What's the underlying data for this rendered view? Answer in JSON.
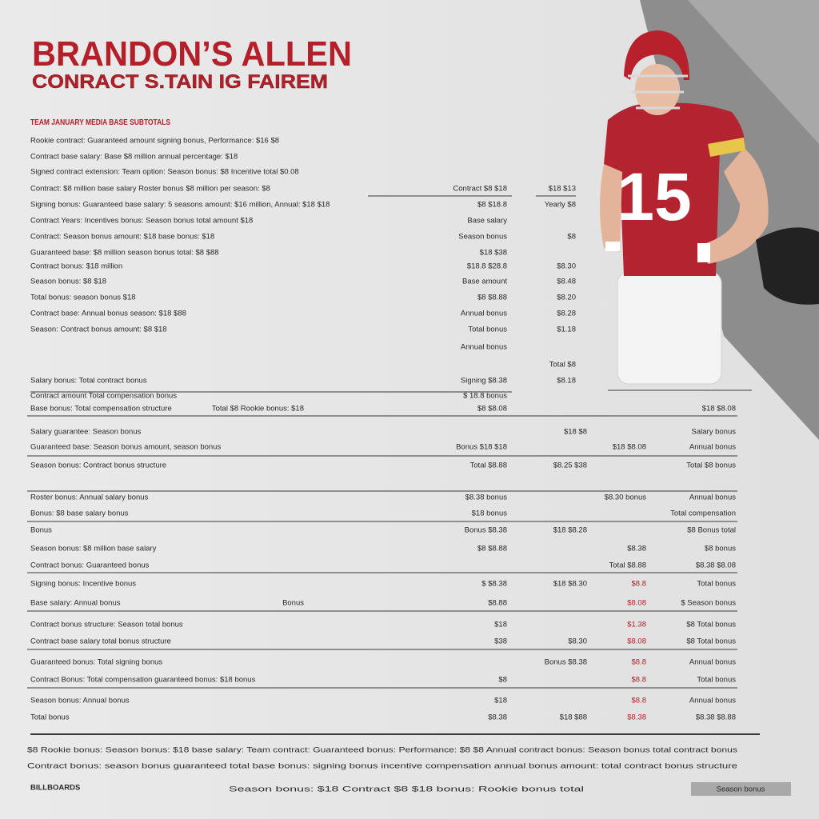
{
  "header": {
    "title": "BRANDON’S ALLEN",
    "subtitle": "CONRACT S.TAIN IG FAIREM",
    "section_heading": "TEAM JANUARY MEDIA BASE SUBTOTALS"
  },
  "player": {
    "jersey_number": "15"
  },
  "upper_rows": [
    {
      "label": "Rookie contract: Guaranteed amount signing bonus, Performance: $16 $8"
    },
    {
      "label": "Contract base salary: Base $8 million annual percentage: $18"
    },
    {
      "label": "Signed contract extension: Team option: Season bonus: $8 Incentive total $0.08"
    },
    {
      "label": "Contract: $8 million base salary Roster bonus $8 million per season: $8",
      "amount": "Contract $8 $18",
      "rate": "$18 $13"
    },
    {
      "label": "Signing bonus: Guaranteed base salary: 5 seasons amount: $16 million, Annual: $18 $18",
      "amount": "$8 $18.8",
      "rate": "Yearly $8"
    },
    {
      "label": "Contract Years: Incentives bonus: Season bonus total amount $18",
      "amount": "Base salary"
    },
    {
      "label": "Contract: Season bonus amount: $18 base bonus: $18",
      "amount": "Season bonus",
      "rate": "$8"
    },
    {
      "label": "Guaranteed base: $8 million season bonus total: $8 $88",
      "amount": "$18 $38"
    },
    {
      "label": "Contract bonus: $18 million",
      "amount": "$18.8 $28.8",
      "rate": "$8.30"
    },
    {
      "label": "Season bonus: $8 $18",
      "amount": "Base amount",
      "rate": "$8.48"
    },
    {
      "label": "Total bonus: season bonus $18",
      "amount": "$8 $8.88",
      "rate": "$8.20"
    },
    {
      "label": "Contract base: Annual bonus season: $18 $88",
      "amount": "Annual bonus",
      "rate": "$8.28"
    },
    {
      "label": "Season: Contract bonus amount: $8 $18",
      "amount": "Total bonus",
      "rate": "$1.18"
    },
    {
      "amount": "Annual bonus"
    },
    {
      "rate": "Total $8"
    },
    {
      "label": "Salary bonus: Total contract bonus",
      "amount": "Signing $8.38",
      "rate": "$8.18"
    }
  ],
  "lower_rows": [
    {
      "label": "Contract amount Total compensation bonus",
      "col1": "$ 18.8 bonus"
    },
    {
      "label": "Base bonus: Total compensation structure",
      "middle": "Total $8 Rookie bonus: $18",
      "col1": "$8 $8.08",
      "col4": "$18 $8.08"
    },
    {
      "label": "Salary guarantee: Season bonus",
      "col2": "$18 $8",
      "col4": "Salary bonus"
    },
    {
      "label": "Guaranteed base: Season bonus amount, season bonus",
      "col1": "Bonus $18 $18",
      "col3": "$18 $8.08",
      "col4": "Annual bonus"
    },
    {
      "label": "Season bonus: Contract bonus structure",
      "col1": "Total $8.88",
      "col2": "$8.25 $38",
      "col4": "Total $8 bonus"
    },
    {
      "label": "Roster bonus: Annual salary bonus",
      "col1": "$8.38 bonus",
      "col3": "$8.30 bonus",
      "col4": "Annual bonus"
    },
    {
      "label": "Bonus: $8 base salary bonus",
      "col1": "$18 bonus",
      "col4": "Total compensation"
    },
    {
      "label": "Bonus",
      "col1": "Bonus $8.38",
      "col2": "$18 $8.28",
      "col4": "$8 Bonus total"
    },
    {
      "label": "Season bonus: $8 million base salary",
      "col1": "$8 $8.88",
      "col3": "$8.38",
      "col4": "$8 bonus"
    },
    {
      "label": "Contract bonus: Guaranteed bonus",
      "col3": "Total $8.88",
      "col4": "$8.38 $8.08"
    },
    {
      "label": "Signing bonus: Incentive bonus",
      "col1": "$ $8.38",
      "col2": "$18 $8.30",
      "col3": "$8.8",
      "col4": "Total bonus"
    },
    {
      "label": "Base salary: Annual bonus",
      "middle": "Bonus",
      "col1": "$8.88",
      "col3": "$8.08",
      "col4": "$ Season bonus"
    },
    {
      "label": "Contract bonus structure: Season total bonus",
      "col1": "$18",
      "col3": "$1.38",
      "col4": "$8 Total bonus"
    },
    {
      "label": "Contract base salary total bonus structure",
      "col1": "$38",
      "col2": "$8.30",
      "col3": "$8.08",
      "col4": "$8 Total bonus"
    },
    {
      "label": "Guaranteed bonus: Total signing bonus",
      "col2": "Bonus $8.38",
      "col3": "$8.8",
      "col4": "Annual bonus"
    },
    {
      "label": "Contract Bonus: Total compensation guaranteed bonus: $18 bonus",
      "col1": "$8",
      "col3": "$8.8",
      "col4": "Total bonus"
    },
    {
      "label": "Season bonus: Annual bonus",
      "col1": "$18",
      "col3": "$8.8",
      "col4": "Annual bonus"
    },
    {
      "label": "Total bonus",
      "col1": "$8.38",
      "col2": "$18 $88",
      "col3": "$8.38",
      "col4": "$8.38 $8.88"
    }
  ],
  "footer": {
    "note_1": "$8 Rookie bonus: Season bonus: $18 base salary: Team contract: Guaranteed bonus: Performance: $8 $8 Annual contract bonus: Season bonus total contract bonus",
    "note_2": "Contract bonus: season bonus guaranteed total base bonus: signing bonus incentive compensation annual bonus amount: total contract bonus structure",
    "logo": "BILLBOARDS",
    "center": "Season bonus: $18 Contract $8 $18 bonus: Rookie bonus total",
    "button": "Season bonus"
  }
}
